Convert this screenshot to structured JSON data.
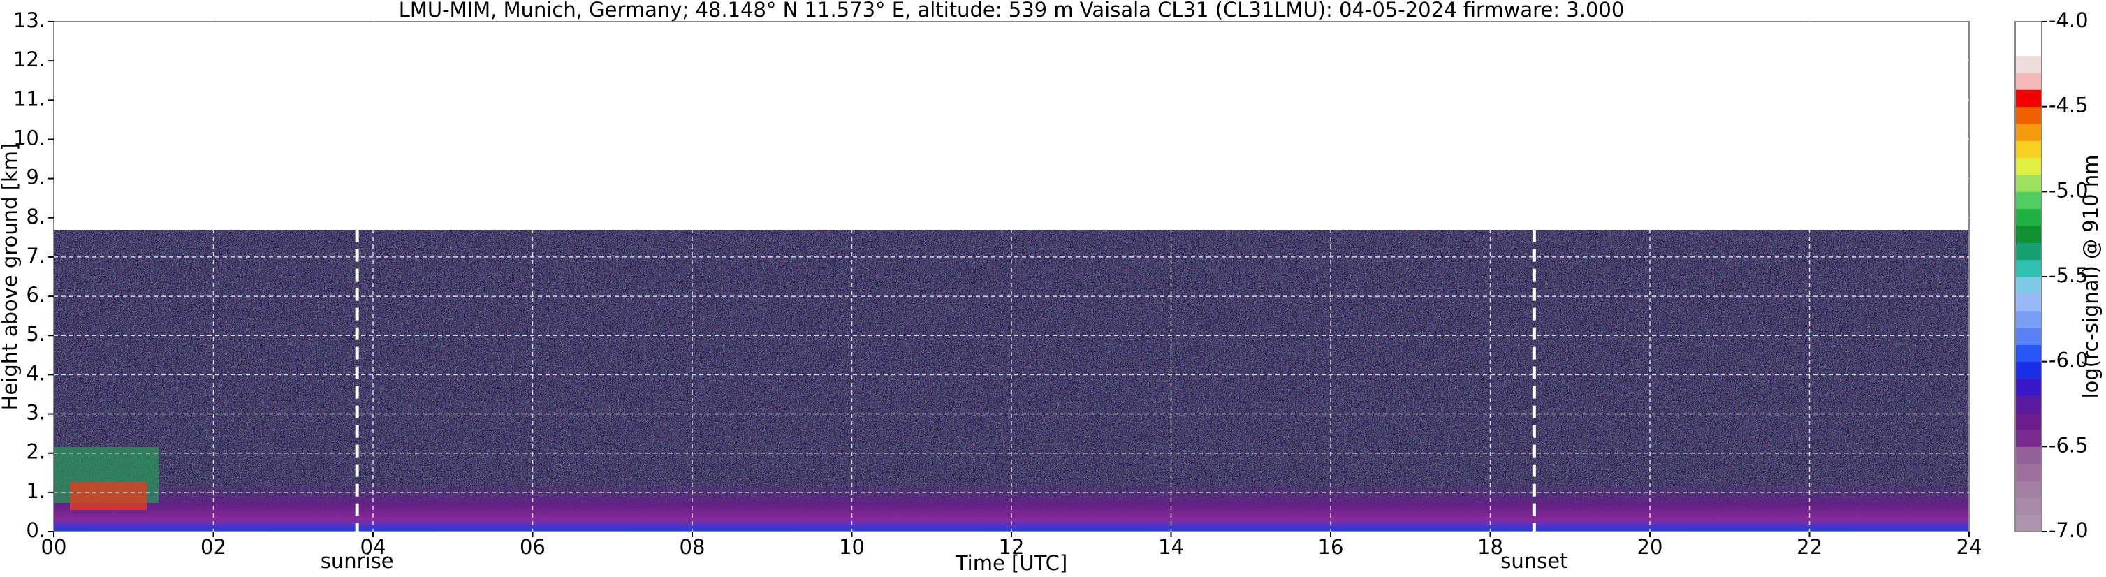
{
  "chart_data": {
    "type": "heatmap",
    "title": "LMU-MIM, Munich, Germany; 48.148° N 11.573° E, altitude: 539 m    Vaisala CL31 (CL31LMU): 04-05-2024    firmware: 3.000",
    "xlabel": "Time [UTC]",
    "ylabel": "Height above ground [km]",
    "xlim": [
      0,
      24
    ],
    "xticks": [
      {
        "value": 0,
        "label": "00"
      },
      {
        "value": 2,
        "label": "02"
      },
      {
        "value": 4,
        "label": "04"
      },
      {
        "value": 6,
        "label": "06"
      },
      {
        "value": 8,
        "label": "08"
      },
      {
        "value": 10,
        "label": "10"
      },
      {
        "value": 12,
        "label": "12"
      },
      {
        "value": 14,
        "label": "14"
      },
      {
        "value": 16,
        "label": "16"
      },
      {
        "value": 18,
        "label": "18"
      },
      {
        "value": 20,
        "label": "20"
      },
      {
        "value": 22,
        "label": "22"
      },
      {
        "value": 24,
        "label": "24"
      }
    ],
    "ylim": [
      0,
      13
    ],
    "yticks": [
      {
        "value": 0,
        "label": "0."
      },
      {
        "value": 1,
        "label": "1."
      },
      {
        "value": 2,
        "label": "2."
      },
      {
        "value": 3,
        "label": "3."
      },
      {
        "value": 4,
        "label": "4."
      },
      {
        "value": 5,
        "label": "5."
      },
      {
        "value": 6,
        "label": "6."
      },
      {
        "value": 7,
        "label": "7."
      },
      {
        "value": 8,
        "label": "8."
      },
      {
        "value": 9,
        "label": "9."
      },
      {
        "value": 10,
        "label": "10."
      },
      {
        "value": 11,
        "label": "11."
      },
      {
        "value": 12,
        "label": "12."
      },
      {
        "value": 13,
        "label": "13."
      }
    ],
    "grid": true,
    "annotations": [
      {
        "x": 3.8,
        "label": "sunrise"
      },
      {
        "x": 18.55,
        "label": "sunset"
      }
    ],
    "colorbar": {
      "label": "log(rc-signal) @ 910 nm",
      "lim": [
        -7,
        -4
      ],
      "ticks": [
        {
          "value": -7,
          "label": "-7.0"
        },
        {
          "value": -6.5,
          "label": "-6.5"
        },
        {
          "value": -6,
          "label": "-6.0"
        },
        {
          "value": -5.5,
          "label": "-5.5"
        },
        {
          "value": -5,
          "label": "-5.0"
        },
        {
          "value": -4.5,
          "label": "-4.5"
        },
        {
          "value": -4,
          "label": "-4.0"
        }
      ],
      "colors": [
        "#ad96ad",
        "#a98aa9",
        "#a27fa3",
        "#9c6f9d",
        "#93609a",
        "#7a2a8e",
        "#6d1a8c",
        "#5a1aa0",
        "#3818c8",
        "#1a2ee6",
        "#2a55f5",
        "#5a80f5",
        "#7aa0f5",
        "#9ab8f5",
        "#7ec8e8",
        "#30c0b0",
        "#18a070",
        "#109030",
        "#20b040",
        "#50cc60",
        "#a0e060",
        "#e0f040",
        "#f8d020",
        "#f89a10",
        "#f06000",
        "#f00000",
        "#f4b8b8",
        "#ecdcdc",
        "#ffffff",
        "#ffffff"
      ]
    }
  }
}
